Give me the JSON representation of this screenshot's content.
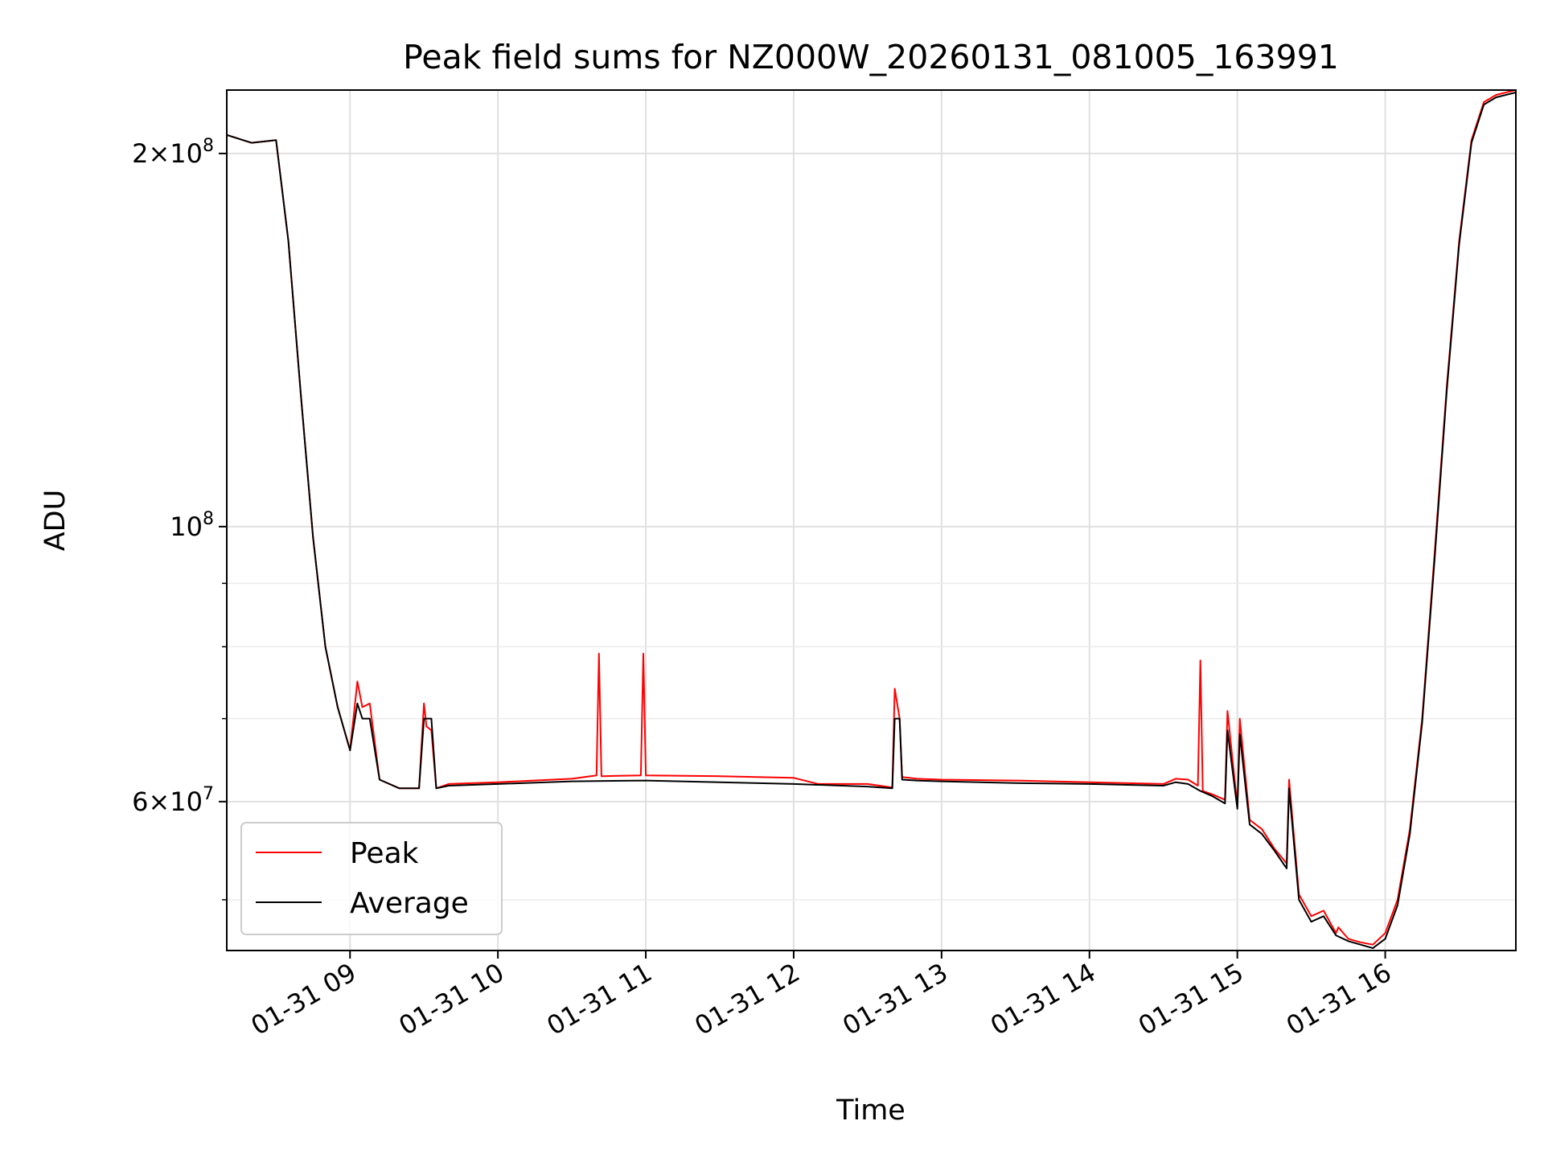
{
  "chart_data": {
    "type": "line",
    "title": "Peak field sums for NZ000W_20260131_081005_163991",
    "xlabel": "Time",
    "ylabel": "ADU",
    "y_scale": "log",
    "ylim": [
      45500000,
      225000000
    ],
    "xlim": [
      "2026-01-31 08:10",
      "2026-01-31 16:53"
    ],
    "grid": true,
    "legend_position": "lower-left",
    "x_ticks": [
      "01-31 09",
      "01-31 10",
      "01-31 11",
      "01-31 12",
      "01-31 13",
      "01-31 14",
      "01-31 15",
      "01-31 16"
    ],
    "y_ticks": [
      {
        "value": 200000000,
        "mantissa": "2",
        "times": "×",
        "base": "10",
        "exp": "8"
      },
      {
        "value": 100000000,
        "mantissa": "",
        "times": "",
        "base": "10",
        "exp": "8"
      },
      {
        "value": 60000000,
        "mantissa": "6",
        "times": "×",
        "base": "10",
        "exp": "7"
      }
    ],
    "y_minor_ticks": [
      50000000,
      70000000,
      80000000,
      90000000
    ],
    "series": [
      {
        "name": "Peak",
        "color": "#ff0000",
        "x": [
          "2026-01-31 08:10",
          "2026-01-31 08:20",
          "2026-01-31 08:30",
          "2026-01-31 08:35",
          "2026-01-31 08:40",
          "2026-01-31 08:45",
          "2026-01-31 08:50",
          "2026-01-31 08:55",
          "2026-01-31 09:00",
          "2026-01-31 09:03",
          "2026-01-31 09:05",
          "2026-01-31 09:08",
          "2026-01-31 09:12",
          "2026-01-31 09:20",
          "2026-01-31 09:28",
          "2026-01-31 09:30",
          "2026-01-31 09:31",
          "2026-01-31 09:33",
          "2026-01-31 09:35",
          "2026-01-31 09:40",
          "2026-01-31 10:00",
          "2026-01-31 10:30",
          "2026-01-31 10:40",
          "2026-01-31 10:41",
          "2026-01-31 10:42",
          "2026-01-31 10:58",
          "2026-01-31 10:59",
          "2026-01-31 11:00",
          "2026-01-31 11:30",
          "2026-01-31 12:00",
          "2026-01-31 12:10",
          "2026-01-31 12:30",
          "2026-01-31 12:40",
          "2026-01-31 12:41",
          "2026-01-31 12:43",
          "2026-01-31 12:44",
          "2026-01-31 12:50",
          "2026-01-31 13:00",
          "2026-01-31 13:30",
          "2026-01-31 14:00",
          "2026-01-31 14:30",
          "2026-01-31 14:35",
          "2026-01-31 14:40",
          "2026-01-31 14:44",
          "2026-01-31 14:45",
          "2026-01-31 14:46",
          "2026-01-31 14:50",
          "2026-01-31 14:55",
          "2026-01-31 14:56",
          "2026-01-31 15:00",
          "2026-01-31 15:01",
          "2026-01-31 15:05",
          "2026-01-31 15:10",
          "2026-01-31 15:15",
          "2026-01-31 15:20",
          "2026-01-31 15:21",
          "2026-01-31 15:25",
          "2026-01-31 15:30",
          "2026-01-31 15:35",
          "2026-01-31 15:40",
          "2026-01-31 15:41",
          "2026-01-31 15:45",
          "2026-01-31 15:50",
          "2026-01-31 15:55",
          "2026-01-31 16:00",
          "2026-01-31 16:05",
          "2026-01-31 16:10",
          "2026-01-31 16:15",
          "2026-01-31 16:20",
          "2026-01-31 16:25",
          "2026-01-31 16:30",
          "2026-01-31 16:35",
          "2026-01-31 16:40",
          "2026-01-31 16:45",
          "2026-01-31 16:53"
        ],
        "y": [
          207000000,
          204000000,
          205000000,
          170000000,
          128000000,
          98000000,
          80000000,
          71500000,
          66000000,
          75000000,
          71500000,
          72000000,
          62500000,
          61500000,
          61500000,
          72000000,
          69000000,
          68500000,
          61500000,
          62000000,
          62200000,
          62600000,
          63000000,
          79000000,
          62900000,
          63000000,
          79000000,
          63000000,
          62900000,
          62700000,
          62000000,
          62000000,
          61600000,
          74000000,
          70000000,
          62800000,
          62600000,
          62500000,
          62400000,
          62200000,
          62000000,
          62600000,
          62500000,
          61800000,
          78000000,
          61200000,
          60800000,
          60200000,
          71000000,
          59500000,
          70000000,
          58000000,
          57000000,
          55000000,
          53500000,
          62500000,
          50500000,
          48500000,
          49000000,
          47000000,
          47500000,
          46500000,
          46200000,
          46000000,
          47000000,
          50000000,
          57000000,
          70000000,
          95000000,
          130000000,
          170000000,
          205000000,
          220000000,
          223000000,
          225000000
        ]
      },
      {
        "name": "Average",
        "color": "#000000",
        "x": [
          "2026-01-31 08:10",
          "2026-01-31 08:20",
          "2026-01-31 08:30",
          "2026-01-31 08:35",
          "2026-01-31 08:40",
          "2026-01-31 08:45",
          "2026-01-31 08:50",
          "2026-01-31 08:55",
          "2026-01-31 09:00",
          "2026-01-31 09:03",
          "2026-01-31 09:05",
          "2026-01-31 09:08",
          "2026-01-31 09:12",
          "2026-01-31 09:20",
          "2026-01-31 09:28",
          "2026-01-31 09:30",
          "2026-01-31 09:33",
          "2026-01-31 09:35",
          "2026-01-31 09:40",
          "2026-01-31 10:00",
          "2026-01-31 10:30",
          "2026-01-31 11:00",
          "2026-01-31 11:30",
          "2026-01-31 12:00",
          "2026-01-31 12:30",
          "2026-01-31 12:40",
          "2026-01-31 12:41",
          "2026-01-31 12:43",
          "2026-01-31 12:44",
          "2026-01-31 12:50",
          "2026-01-31 13:00",
          "2026-01-31 13:30",
          "2026-01-31 14:00",
          "2026-01-31 14:30",
          "2026-01-31 14:35",
          "2026-01-31 14:40",
          "2026-01-31 14:45",
          "2026-01-31 14:50",
          "2026-01-31 14:55",
          "2026-01-31 14:56",
          "2026-01-31 15:00",
          "2026-01-31 15:01",
          "2026-01-31 15:05",
          "2026-01-31 15:10",
          "2026-01-31 15:15",
          "2026-01-31 15:20",
          "2026-01-31 15:21",
          "2026-01-31 15:25",
          "2026-01-31 15:30",
          "2026-01-31 15:35",
          "2026-01-31 15:40",
          "2026-01-31 15:45",
          "2026-01-31 15:50",
          "2026-01-31 15:55",
          "2026-01-31 16:00",
          "2026-01-31 16:05",
          "2026-01-31 16:10",
          "2026-01-31 16:15",
          "2026-01-31 16:20",
          "2026-01-31 16:25",
          "2026-01-31 16:30",
          "2026-01-31 16:35",
          "2026-01-31 16:40",
          "2026-01-31 16:45",
          "2026-01-31 16:53"
        ],
        "y": [
          207000000,
          204000000,
          205000000,
          170000000,
          128000000,
          98000000,
          80000000,
          71500000,
          66000000,
          72000000,
          70000000,
          70000000,
          62500000,
          61500000,
          61500000,
          70000000,
          70000000,
          61500000,
          61800000,
          62000000,
          62300000,
          62400000,
          62200000,
          62000000,
          61700000,
          61500000,
          70000000,
          70000000,
          62500000,
          62400000,
          62300000,
          62100000,
          62000000,
          61800000,
          62200000,
          62000000,
          61200000,
          60600000,
          59800000,
          68500000,
          59200000,
          68000000,
          57500000,
          56500000,
          54800000,
          53000000,
          61500000,
          50000000,
          48000000,
          48500000,
          46800000,
          46300000,
          46000000,
          45700000,
          46500000,
          49500000,
          56500000,
          69500000,
          94000000,
          129000000,
          169000000,
          204000000,
          219000000,
          222000000,
          224000000
        ]
      }
    ]
  }
}
